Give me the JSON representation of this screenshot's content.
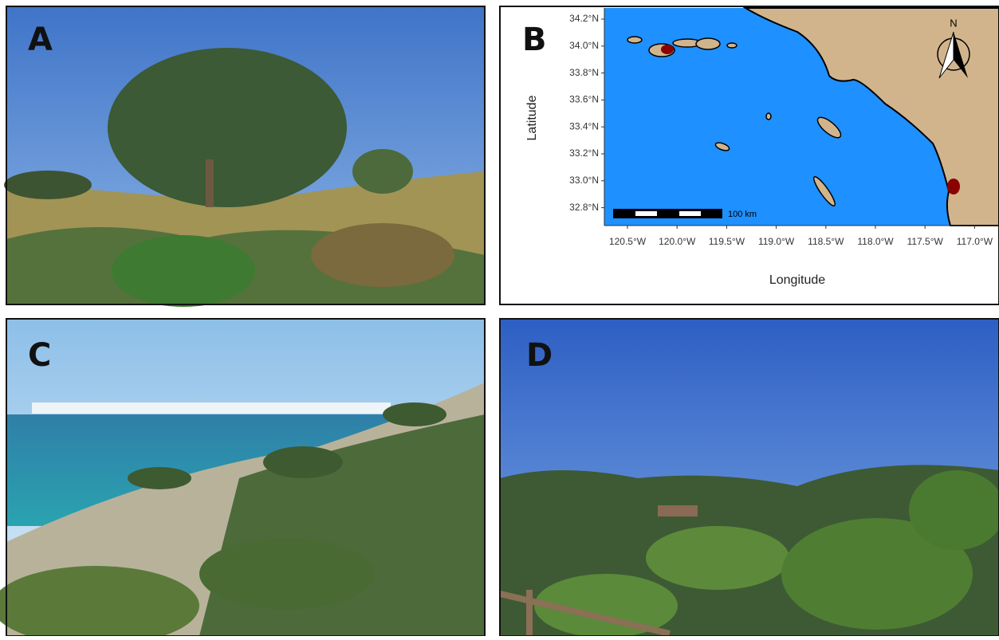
{
  "panels": [
    {
      "label": "A"
    },
    {
      "label": "B"
    },
    {
      "label": "C"
    },
    {
      "label": "D"
    }
  ],
  "map": {
    "x_label": "Longitude",
    "y_label": "Latitude",
    "x_ticks": [
      "120.5°W",
      "120.0°W",
      "119.5°W",
      "119.0°W",
      "118.5°W",
      "118.0°W",
      "117.5°W",
      "117.0°W"
    ],
    "y_ticks": [
      "34.2°N",
      "34.0°N",
      "33.8°N",
      "33.6°N",
      "33.4°N",
      "33.2°N",
      "33.0°N",
      "32.8°N"
    ],
    "scale_bar": "100 km",
    "north": "N"
  }
}
